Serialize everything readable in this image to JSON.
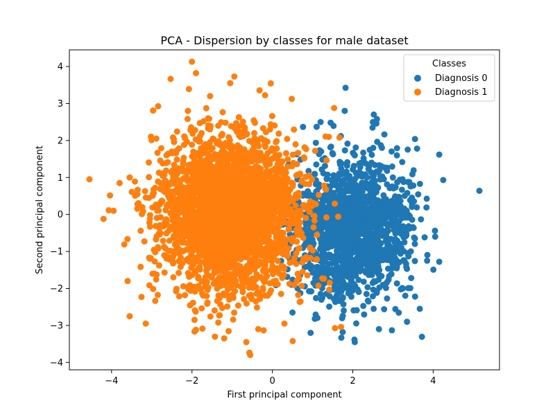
{
  "chart_data": {
    "type": "scatter",
    "title": "PCA - Dispersion by classes for male dataset",
    "xlabel": "First principal component",
    "ylabel": "Second principal component",
    "xlim": [
      -5.05,
      5.65
    ],
    "ylim": [
      -4.2,
      4.45
    ],
    "xticks": [
      -4,
      -2,
      0,
      2,
      4
    ],
    "yticks": [
      -4,
      -3,
      -2,
      -1,
      0,
      1,
      2,
      3,
      4
    ],
    "xtick_labels": [
      "−4",
      "−2",
      "0",
      "2",
      "4"
    ],
    "ytick_labels": [
      "−4",
      "−3",
      "−2",
      "−1",
      "0",
      "1",
      "2",
      "3",
      "4"
    ],
    "grid": false,
    "legend": {
      "title": "Classes",
      "placement": "top-right"
    },
    "series": [
      {
        "name": "Diagnosis 0",
        "color": "#1f77b4",
        "center": [
          2.0,
          -0.35
        ],
        "spread": [
          0.75,
          0.95
        ],
        "count": 1500,
        "extreme_points": [
          [
            5.15,
            0.64
          ],
          [
            4.25,
            0.93
          ],
          [
            4.15,
            1.62
          ],
          [
            3.6,
            1.78
          ],
          [
            2.6,
            2.58
          ],
          [
            2.5,
            2.5
          ],
          [
            1.8,
            2.8
          ],
          [
            1.45,
            2.48
          ],
          [
            1.2,
            2.5
          ],
          [
            1.1,
            2.37
          ],
          [
            0.95,
            -3.2
          ],
          [
            1.75,
            -3.18
          ],
          [
            2.05,
            -3.45
          ],
          [
            2.65,
            -3.1
          ],
          [
            4.15,
            -1.28
          ],
          [
            3.85,
            -1.25
          ],
          [
            3.55,
            -2.22
          ],
          [
            0.5,
            -2.65
          ],
          [
            4.05,
            -0.6
          ],
          [
            3.35,
            -2.9
          ]
        ]
      },
      {
        "name": "Diagnosis 1",
        "color": "#ff7f0e",
        "center": [
          -1.05,
          0.05
        ],
        "spread": [
          0.85,
          1.05
        ],
        "count": 3000,
        "extreme_points": [
          [
            -4.55,
            0.95
          ],
          [
            -4.2,
            -0.12
          ],
          [
            -3.95,
            0.1
          ],
          [
            -3.8,
            0.85
          ],
          [
            -3.55,
            1.0
          ],
          [
            -2.0,
            4.13
          ],
          [
            -1.9,
            3.82
          ],
          [
            -1.05,
            3.55
          ],
          [
            -1.55,
            3.2
          ],
          [
            -2.1,
            2.8
          ],
          [
            -0.55,
            -3.8
          ],
          [
            -0.65,
            -3.45
          ],
          [
            -1.2,
            -3.35
          ],
          [
            -1.9,
            -3.12
          ],
          [
            -3.15,
            -2.95
          ],
          [
            -3.55,
            -2.75
          ],
          [
            -3.6,
            -1.8
          ],
          [
            -0.35,
            -3.1
          ],
          [
            0.3,
            -2.95
          ],
          [
            0.7,
            -2.35
          ]
        ]
      }
    ]
  }
}
